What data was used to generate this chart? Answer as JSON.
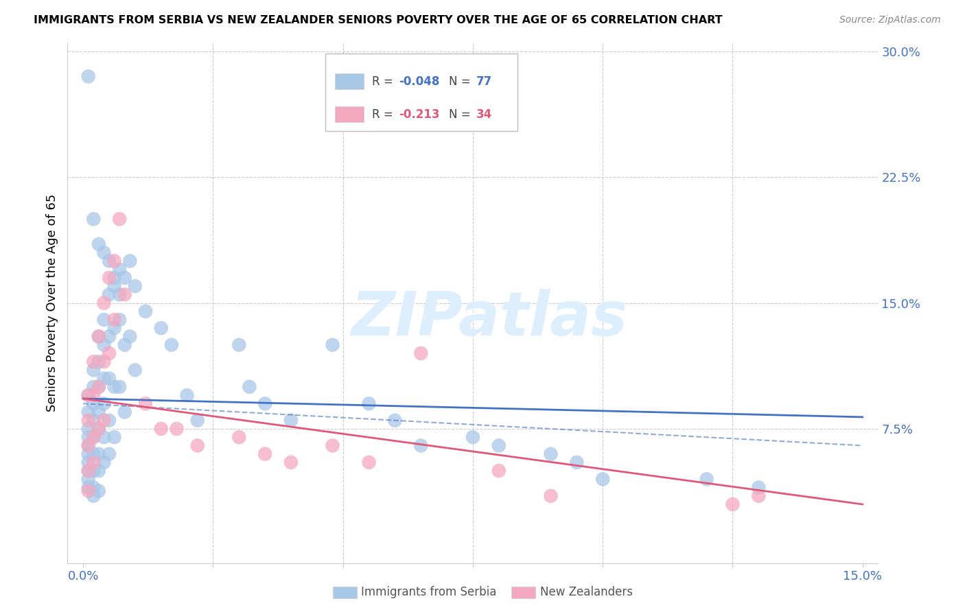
{
  "title": "IMMIGRANTS FROM SERBIA VS NEW ZEALANDER SENIORS POVERTY OVER THE AGE OF 65 CORRELATION CHART",
  "source": "Source: ZipAtlas.com",
  "ylabel": "Seniors Poverty Over the Age of 65",
  "xlim": [
    0.0,
    0.15
  ],
  "ylim": [
    0.0,
    0.3
  ],
  "blue_color": "#a8c8e8",
  "pink_color": "#f4a8c0",
  "line_blue": "#4472c4",
  "line_pink": "#e05878",
  "label_color": "#4472c4",
  "grid_color": "#cccccc",
  "watermark_color": "#ddeeff",
  "serbia_x": [
    0.001,
    0.001,
    0.001,
    0.001,
    0.001,
    0.001,
    0.001,
    0.001,
    0.001,
    0.001,
    0.002,
    0.002,
    0.002,
    0.002,
    0.002,
    0.002,
    0.002,
    0.002,
    0.002,
    0.003,
    0.003,
    0.003,
    0.003,
    0.003,
    0.003,
    0.003,
    0.003,
    0.004,
    0.004,
    0.004,
    0.004,
    0.004,
    0.004,
    0.005,
    0.005,
    0.005,
    0.005,
    0.005,
    0.006,
    0.006,
    0.006,
    0.006,
    0.007,
    0.007,
    0.007,
    0.008,
    0.008,
    0.008,
    0.009,
    0.009,
    0.01,
    0.01,
    0.012,
    0.015,
    0.017,
    0.02,
    0.022,
    0.03,
    0.032,
    0.035,
    0.04,
    0.048,
    0.055,
    0.06,
    0.065,
    0.075,
    0.08,
    0.09,
    0.095,
    0.1,
    0.12,
    0.13,
    0.001,
    0.002,
    0.003,
    0.004,
    0.005,
    0.006,
    0.007
  ],
  "serbia_y": [
    0.095,
    0.085,
    0.075,
    0.07,
    0.065,
    0.06,
    0.055,
    0.05,
    0.045,
    0.04,
    0.11,
    0.1,
    0.09,
    0.08,
    0.07,
    0.06,
    0.05,
    0.04,
    0.035,
    0.13,
    0.115,
    0.1,
    0.085,
    0.075,
    0.06,
    0.05,
    0.038,
    0.14,
    0.125,
    0.105,
    0.09,
    0.07,
    0.055,
    0.155,
    0.13,
    0.105,
    0.08,
    0.06,
    0.16,
    0.135,
    0.1,
    0.07,
    0.17,
    0.14,
    0.1,
    0.165,
    0.125,
    0.085,
    0.175,
    0.13,
    0.16,
    0.11,
    0.145,
    0.135,
    0.125,
    0.095,
    0.08,
    0.125,
    0.1,
    0.09,
    0.08,
    0.125,
    0.09,
    0.08,
    0.065,
    0.07,
    0.065,
    0.06,
    0.055,
    0.045,
    0.045,
    0.04,
    0.285,
    0.2,
    0.185,
    0.18,
    0.175,
    0.165,
    0.155
  ],
  "nz_x": [
    0.001,
    0.001,
    0.001,
    0.001,
    0.001,
    0.002,
    0.002,
    0.002,
    0.002,
    0.003,
    0.003,
    0.003,
    0.004,
    0.004,
    0.004,
    0.005,
    0.005,
    0.006,
    0.006,
    0.007,
    0.008,
    0.012,
    0.015,
    0.018,
    0.022,
    0.03,
    0.035,
    0.04,
    0.048,
    0.055,
    0.065,
    0.08,
    0.09,
    0.125,
    0.13
  ],
  "nz_y": [
    0.095,
    0.08,
    0.065,
    0.05,
    0.038,
    0.115,
    0.095,
    0.07,
    0.055,
    0.13,
    0.1,
    0.075,
    0.15,
    0.115,
    0.08,
    0.165,
    0.12,
    0.175,
    0.14,
    0.2,
    0.155,
    0.09,
    0.075,
    0.075,
    0.065,
    0.07,
    0.06,
    0.055,
    0.065,
    0.055,
    0.12,
    0.05,
    0.035,
    0.03,
    0.035
  ],
  "blue_trend_x0": 0.0,
  "blue_trend_x1": 0.15,
  "blue_trend_y0": 0.093,
  "blue_trend_y1": 0.082,
  "pink_trend_x0": 0.0,
  "pink_trend_x1": 0.15,
  "pink_trend_y0": 0.093,
  "pink_trend_y1": 0.03,
  "dash_trend_y0": 0.09,
  "dash_trend_y1": 0.065
}
